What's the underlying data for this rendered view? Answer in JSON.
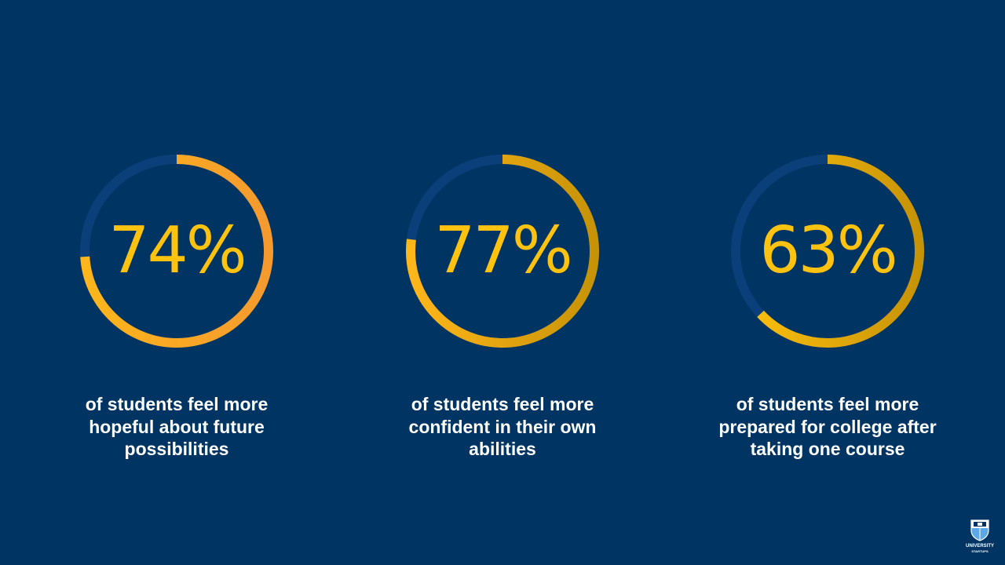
{
  "colors": {
    "background": "#003462",
    "track": "#0B3F7A",
    "accent_yellow": "#FFC20E",
    "accent_orange": "#F59A2F",
    "accent_gold": "#D39A08",
    "text": "#FFFFFF"
  },
  "chart_data": [
    {
      "type": "pie",
      "value": 74,
      "label": "74%",
      "caption": "of students feel more hopeful about future possibilities",
      "gradient": [
        "#FFB61A",
        "#F59A2F"
      ]
    },
    {
      "type": "pie",
      "value": 77,
      "label": "77%",
      "caption": "of students feel more confident in their own abilities",
      "gradient": [
        "#FFB61A",
        "#C79306"
      ]
    },
    {
      "type": "pie",
      "value": 63,
      "label": "63%",
      "caption": "of students feel more prepared for college after taking one course",
      "gradient": [
        "#FFC20E",
        "#C79306"
      ]
    }
  ],
  "logo": {
    "name": "UNIVERSITY",
    "sub": "STARTUPS"
  }
}
